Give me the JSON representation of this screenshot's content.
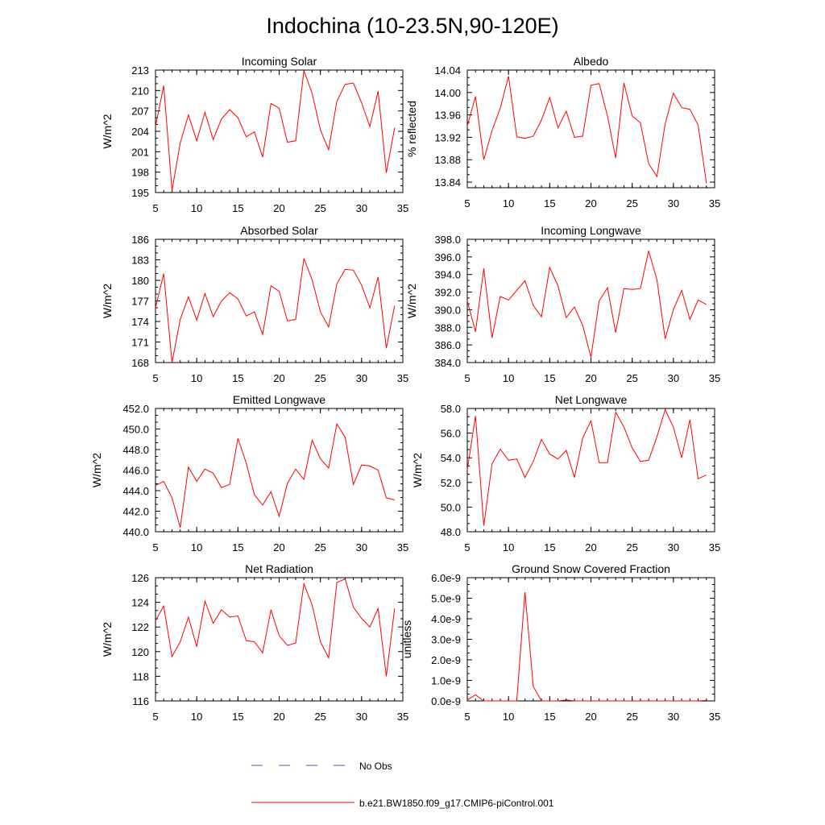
{
  "title": "Indochina (10-23.5N,90-120E)",
  "legend": {
    "obs_label": "No Obs",
    "model_label": "b.e21.BW1850.f09_g17.CMIP6-piControl.001",
    "obs_color": "#4b5bbd",
    "model_color": "#ff0000"
  },
  "chart_data": [
    {
      "type": "line",
      "title": "Incoming Solar",
      "ylabel": "W/m^2",
      "xlabel": "",
      "xlim": [
        5,
        35
      ],
      "ylim": [
        195,
        213
      ],
      "xticks": [
        5,
        10,
        15,
        20,
        25,
        30,
        35
      ],
      "xtick_labels": [
        "5",
        "10",
        "15",
        "20",
        "25",
        "30",
        "35"
      ],
      "yticks": [
        195,
        198,
        201,
        204,
        207,
        210,
        213
      ],
      "ytick_labels": [
        "195",
        "198",
        "201",
        "204",
        "207",
        "210",
        "213"
      ],
      "x": [
        5,
        6,
        7,
        8,
        9,
        10,
        11,
        12,
        13,
        14,
        15,
        16,
        17,
        18,
        19,
        20,
        21,
        22,
        23,
        24,
        25,
        26,
        27,
        28,
        29,
        30,
        31,
        32,
        33,
        34
      ],
      "series": [
        {
          "name": "b.e21.BW1850.f09_g17.CMIP6-piControl.001",
          "values": [
            204.7,
            210.7,
            195.3,
            202.3,
            206.4,
            202.6,
            206.8,
            202.8,
            205.8,
            207.2,
            206.0,
            203.2,
            203.9,
            200.2,
            208.1,
            207.4,
            202.4,
            202.6,
            212.9,
            209.6,
            204.2,
            201.3,
            208.4,
            210.9,
            211.1,
            208.2,
            204.7,
            209.9,
            197.9,
            204.5
          ]
        }
      ]
    },
    {
      "type": "line",
      "title": "Albedo",
      "ylabel": "% reflected",
      "xlabel": "",
      "xlim": [
        5,
        35
      ],
      "ylim": [
        13.83,
        14.04
      ],
      "xticks": [
        5,
        10,
        15,
        20,
        25,
        30,
        35
      ],
      "xtick_labels": [
        "5",
        "10",
        "15",
        "20",
        "25",
        "30",
        "35"
      ],
      "yticks": [
        13.84,
        13.88,
        13.92,
        13.96,
        14.0,
        14.04
      ],
      "ytick_labels": [
        "13.84",
        "13.88",
        "13.92",
        "13.96",
        "14.00",
        "14.04"
      ],
      "x": [
        5,
        6,
        7,
        8,
        9,
        10,
        11,
        12,
        13,
        14,
        15,
        16,
        17,
        18,
        19,
        20,
        21,
        22,
        23,
        24,
        25,
        26,
        27,
        28,
        29,
        30,
        31,
        32,
        33,
        34
      ],
      "series": [
        {
          "name": "b.e21.BW1850.f09_g17.CMIP6-piControl.001",
          "values": [
            13.94,
            13.993,
            13.88,
            13.932,
            13.972,
            14.029,
            13.921,
            13.918,
            13.922,
            13.951,
            13.991,
            13.937,
            13.967,
            13.92,
            13.922,
            14.013,
            14.016,
            13.958,
            13.883,
            14.017,
            13.958,
            13.946,
            13.873,
            13.85,
            13.944,
            13.999,
            13.973,
            13.97,
            13.942,
            13.838
          ]
        }
      ]
    },
    {
      "type": "line",
      "title": "Absorbed Solar",
      "ylabel": "W/m^2",
      "xlabel": "",
      "xlim": [
        5,
        35
      ],
      "ylim": [
        168,
        186
      ],
      "xticks": [
        5,
        10,
        15,
        20,
        25,
        30,
        35
      ],
      "xtick_labels": [
        "5",
        "10",
        "15",
        "20",
        "25",
        "30",
        "35"
      ],
      "yticks": [
        168,
        171,
        174,
        177,
        180,
        183,
        186
      ],
      "ytick_labels": [
        "168",
        "171",
        "174",
        "177",
        "180",
        "183",
        "186"
      ],
      "x": [
        5,
        6,
        7,
        8,
        9,
        10,
        11,
        12,
        13,
        14,
        15,
        16,
        17,
        18,
        19,
        20,
        21,
        22,
        23,
        24,
        25,
        26,
        27,
        28,
        29,
        30,
        31,
        32,
        33,
        34
      ],
      "series": [
        {
          "name": "b.e21.BW1850.f09_g17.CMIP6-piControl.001",
          "values": [
            176.0,
            181.0,
            168.0,
            174.3,
            177.6,
            174.2,
            178.1,
            174.7,
            177.0,
            178.2,
            177.3,
            174.8,
            175.4,
            172.1,
            179.2,
            178.4,
            174.1,
            174.3,
            183.2,
            180.1,
            175.4,
            173.2,
            179.5,
            181.6,
            181.5,
            179.3,
            176.0,
            180.5,
            170.1,
            176.3
          ]
        }
      ]
    },
    {
      "type": "line",
      "title": "Incoming Longwave",
      "ylabel": "W/m^2",
      "xlabel": "",
      "xlim": [
        5,
        35
      ],
      "ylim": [
        384,
        398
      ],
      "xticks": [
        5,
        10,
        15,
        20,
        25,
        30,
        35
      ],
      "xtick_labels": [
        "5",
        "10",
        "15",
        "20",
        "25",
        "30",
        "35"
      ],
      "yticks": [
        384,
        386,
        388,
        390,
        392,
        394,
        396,
        398
      ],
      "ytick_labels": [
        "384.0",
        "386.0",
        "388.0",
        "390.0",
        "392.0",
        "394.0",
        "396.0",
        "398.0"
      ],
      "x": [
        5,
        6,
        7,
        8,
        9,
        10,
        11,
        12,
        13,
        14,
        15,
        16,
        17,
        18,
        19,
        20,
        21,
        22,
        23,
        24,
        25,
        26,
        27,
        28,
        29,
        30,
        31,
        32,
        33,
        34
      ],
      "series": [
        {
          "name": "b.e21.BW1850.f09_g17.CMIP6-piControl.001",
          "values": [
            391.0,
            387.5,
            394.7,
            386.8,
            391.5,
            391.1,
            392.2,
            393.3,
            390.5,
            389.2,
            394.8,
            392.7,
            389.1,
            390.3,
            388.2,
            384.6,
            391.0,
            392.5,
            387.4,
            392.4,
            392.3,
            392.4,
            396.7,
            393.4,
            386.7,
            390.0,
            392.2,
            388.9,
            391.1,
            390.6
          ]
        }
      ]
    },
    {
      "type": "line",
      "title": "Emitted Longwave",
      "ylabel": "W/m^2",
      "xlabel": "",
      "xlim": [
        5,
        35
      ],
      "ylim": [
        440,
        452
      ],
      "xticks": [
        5,
        10,
        15,
        20,
        25,
        30,
        35
      ],
      "xtick_labels": [
        "5",
        "10",
        "15",
        "20",
        "25",
        "30",
        "35"
      ],
      "yticks": [
        440,
        442,
        444,
        446,
        448,
        450,
        452
      ],
      "ytick_labels": [
        "440.0",
        "442.0",
        "444.0",
        "446.0",
        "448.0",
        "450.0",
        "452.0"
      ],
      "x": [
        5,
        6,
        7,
        8,
        9,
        10,
        11,
        12,
        13,
        14,
        15,
        16,
        17,
        18,
        19,
        20,
        21,
        22,
        23,
        24,
        25,
        26,
        27,
        28,
        29,
        30,
        31,
        32,
        33,
        34
      ],
      "series": [
        {
          "name": "b.e21.BW1850.f09_g17.CMIP6-piControl.001",
          "values": [
            444.5,
            444.9,
            443.3,
            440.4,
            446.3,
            444.9,
            446.1,
            445.7,
            444.3,
            444.6,
            449.1,
            446.7,
            443.6,
            442.6,
            443.9,
            441.5,
            444.7,
            446.1,
            445.1,
            448.9,
            447.1,
            446.2,
            450.5,
            449.2,
            444.6,
            446.5,
            446.4,
            446.0,
            443.3,
            443.1
          ]
        }
      ]
    },
    {
      "type": "line",
      "title": "Net Longwave",
      "ylabel": "W/m^2",
      "xlabel": "",
      "xlim": [
        5,
        35
      ],
      "ylim": [
        48,
        58
      ],
      "xticks": [
        5,
        10,
        15,
        20,
        25,
        30,
        35
      ],
      "xtick_labels": [
        "5",
        "10",
        "15",
        "20",
        "25",
        "30",
        "35"
      ],
      "yticks": [
        48,
        50,
        52,
        54,
        56,
        58
      ],
      "ytick_labels": [
        "48.0",
        "50.0",
        "52.0",
        "54.0",
        "56.0",
        "58.0"
      ],
      "x": [
        5,
        6,
        7,
        8,
        9,
        10,
        11,
        12,
        13,
        14,
        15,
        16,
        17,
        18,
        19,
        20,
        21,
        22,
        23,
        24,
        25,
        26,
        27,
        28,
        29,
        30,
        31,
        32,
        33,
        34
      ],
      "series": [
        {
          "name": "b.e21.BW1850.f09_g17.CMIP6-piControl.001",
          "values": [
            53.0,
            57.4,
            48.5,
            53.5,
            54.7,
            53.8,
            53.9,
            52.4,
            53.7,
            55.5,
            54.3,
            53.9,
            54.6,
            52.4,
            55.6,
            57.0,
            53.6,
            53.6,
            57.7,
            56.5,
            54.8,
            53.7,
            53.8,
            55.7,
            57.9,
            56.5,
            54.0,
            57.1,
            52.3,
            52.6
          ]
        }
      ]
    },
    {
      "type": "line",
      "title": "Net Radiation",
      "ylabel": "W/m^2",
      "xlabel": "",
      "xlim": [
        5,
        35
      ],
      "ylim": [
        116,
        126
      ],
      "xticks": [
        5,
        10,
        15,
        20,
        25,
        30,
        35
      ],
      "xtick_labels": [
        "5",
        "10",
        "15",
        "20",
        "25",
        "30",
        "35"
      ],
      "yticks": [
        116,
        118,
        120,
        122,
        124,
        126
      ],
      "ytick_labels": [
        "116",
        "118",
        "120",
        "122",
        "124",
        "126"
      ],
      "x": [
        5,
        6,
        7,
        8,
        9,
        10,
        11,
        12,
        13,
        14,
        15,
        16,
        17,
        18,
        19,
        20,
        21,
        22,
        23,
        24,
        25,
        26,
        27,
        28,
        29,
        30,
        31,
        32,
        33,
        34
      ],
      "series": [
        {
          "name": "b.e21.BW1850.f09_g17.CMIP6-piControl.001",
          "values": [
            122.5,
            123.7,
            119.6,
            120.8,
            122.8,
            120.4,
            124.1,
            122.3,
            123.4,
            122.8,
            122.9,
            120.9,
            120.8,
            119.9,
            123.4,
            121.3,
            120.5,
            120.7,
            125.5,
            123.8,
            120.8,
            119.5,
            125.6,
            125.9,
            123.6,
            122.7,
            122.0,
            123.5,
            118.0,
            123.5
          ]
        }
      ]
    },
    {
      "type": "line",
      "title": "Ground Snow Covered Fraction",
      "ylabel": "unitless",
      "xlabel": "",
      "xlim": [
        5,
        35
      ],
      "ylim": [
        0,
        6e-09
      ],
      "xticks": [
        5,
        10,
        15,
        20,
        25,
        30,
        35
      ],
      "xtick_labels": [
        "5",
        "10",
        "15",
        "20",
        "25",
        "30",
        "35"
      ],
      "yticks": [
        0,
        1e-09,
        2e-09,
        3e-09,
        4e-09,
        5e-09,
        6e-09
      ],
      "ytick_labels": [
        "0.0e-9",
        "1.0e-9",
        "2.0e-9",
        "3.0e-9",
        "4.0e-9",
        "5.0e-9",
        "6.0e-9"
      ],
      "x": [
        5,
        6,
        7,
        8,
        9,
        10,
        11,
        12,
        13,
        14,
        15,
        16,
        17,
        18,
        19,
        20,
        21,
        22,
        23,
        24,
        25,
        26,
        27,
        28,
        29,
        30,
        31,
        32,
        33,
        34
      ],
      "series": [
        {
          "name": "b.e21.BW1850.f09_g17.CMIP6-piControl.001",
          "values": [
            5e-11,
            3e-10,
            0,
            0,
            0,
            0,
            0,
            5.3e-09,
            7e-10,
            0,
            0,
            0,
            5e-11,
            0,
            0,
            0,
            0,
            0,
            0,
            0,
            0,
            0,
            0,
            0,
            0,
            0,
            0,
            0,
            0,
            3e-11
          ]
        }
      ]
    }
  ]
}
